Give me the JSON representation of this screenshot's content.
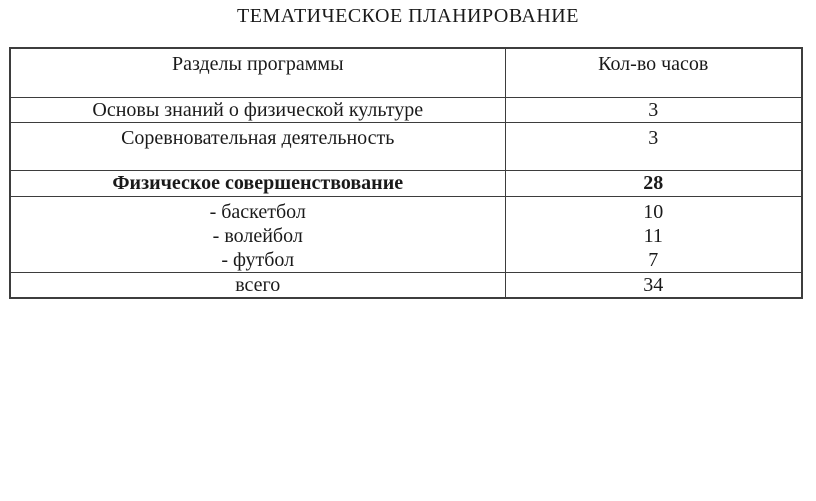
{
  "title": "ТЕМАТИЧЕСКОЕ ПЛАНИРОВАНИЕ",
  "table": {
    "columns": [
      "Разделы программы",
      "Кол-во часов"
    ],
    "rows": [
      {
        "section": "Основы знаний о физической культуре",
        "hours": "3"
      },
      {
        "section": "Соревновательная деятельность",
        "hours": "3"
      },
      {
        "section": "Физическое совершенствование",
        "hours": "28"
      },
      {
        "section_lines": [
          "- баскетбол",
          "- волейбол",
          "- футбол"
        ],
        "hours_lines": [
          "10",
          "11",
          "7"
        ]
      },
      {
        "section": "всего",
        "hours": "34"
      }
    ]
  }
}
